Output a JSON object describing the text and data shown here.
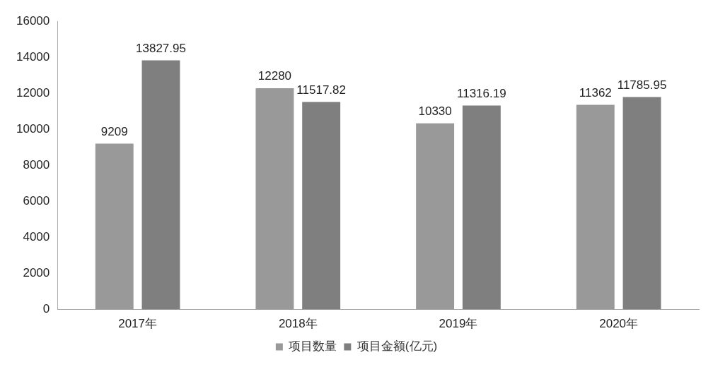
{
  "chart_data": {
    "type": "bar",
    "categories": [
      "2017年",
      "2018年",
      "2019年",
      "2020年"
    ],
    "series": [
      {
        "name": "项目数量",
        "color": "#999999",
        "values": [
          9209,
          12280,
          10330,
          11362
        ]
      },
      {
        "name": "项目金额(亿元)",
        "color": "#7f7f7f",
        "values": [
          13827.95,
          11517.82,
          11316.19,
          11785.95
        ]
      }
    ],
    "ylim": [
      0,
      16000
    ],
    "yticks": [
      0,
      2000,
      4000,
      6000,
      8000,
      10000,
      12000,
      14000,
      16000
    ],
    "grid": false,
    "legend": "bottom",
    "data_labels": true
  }
}
